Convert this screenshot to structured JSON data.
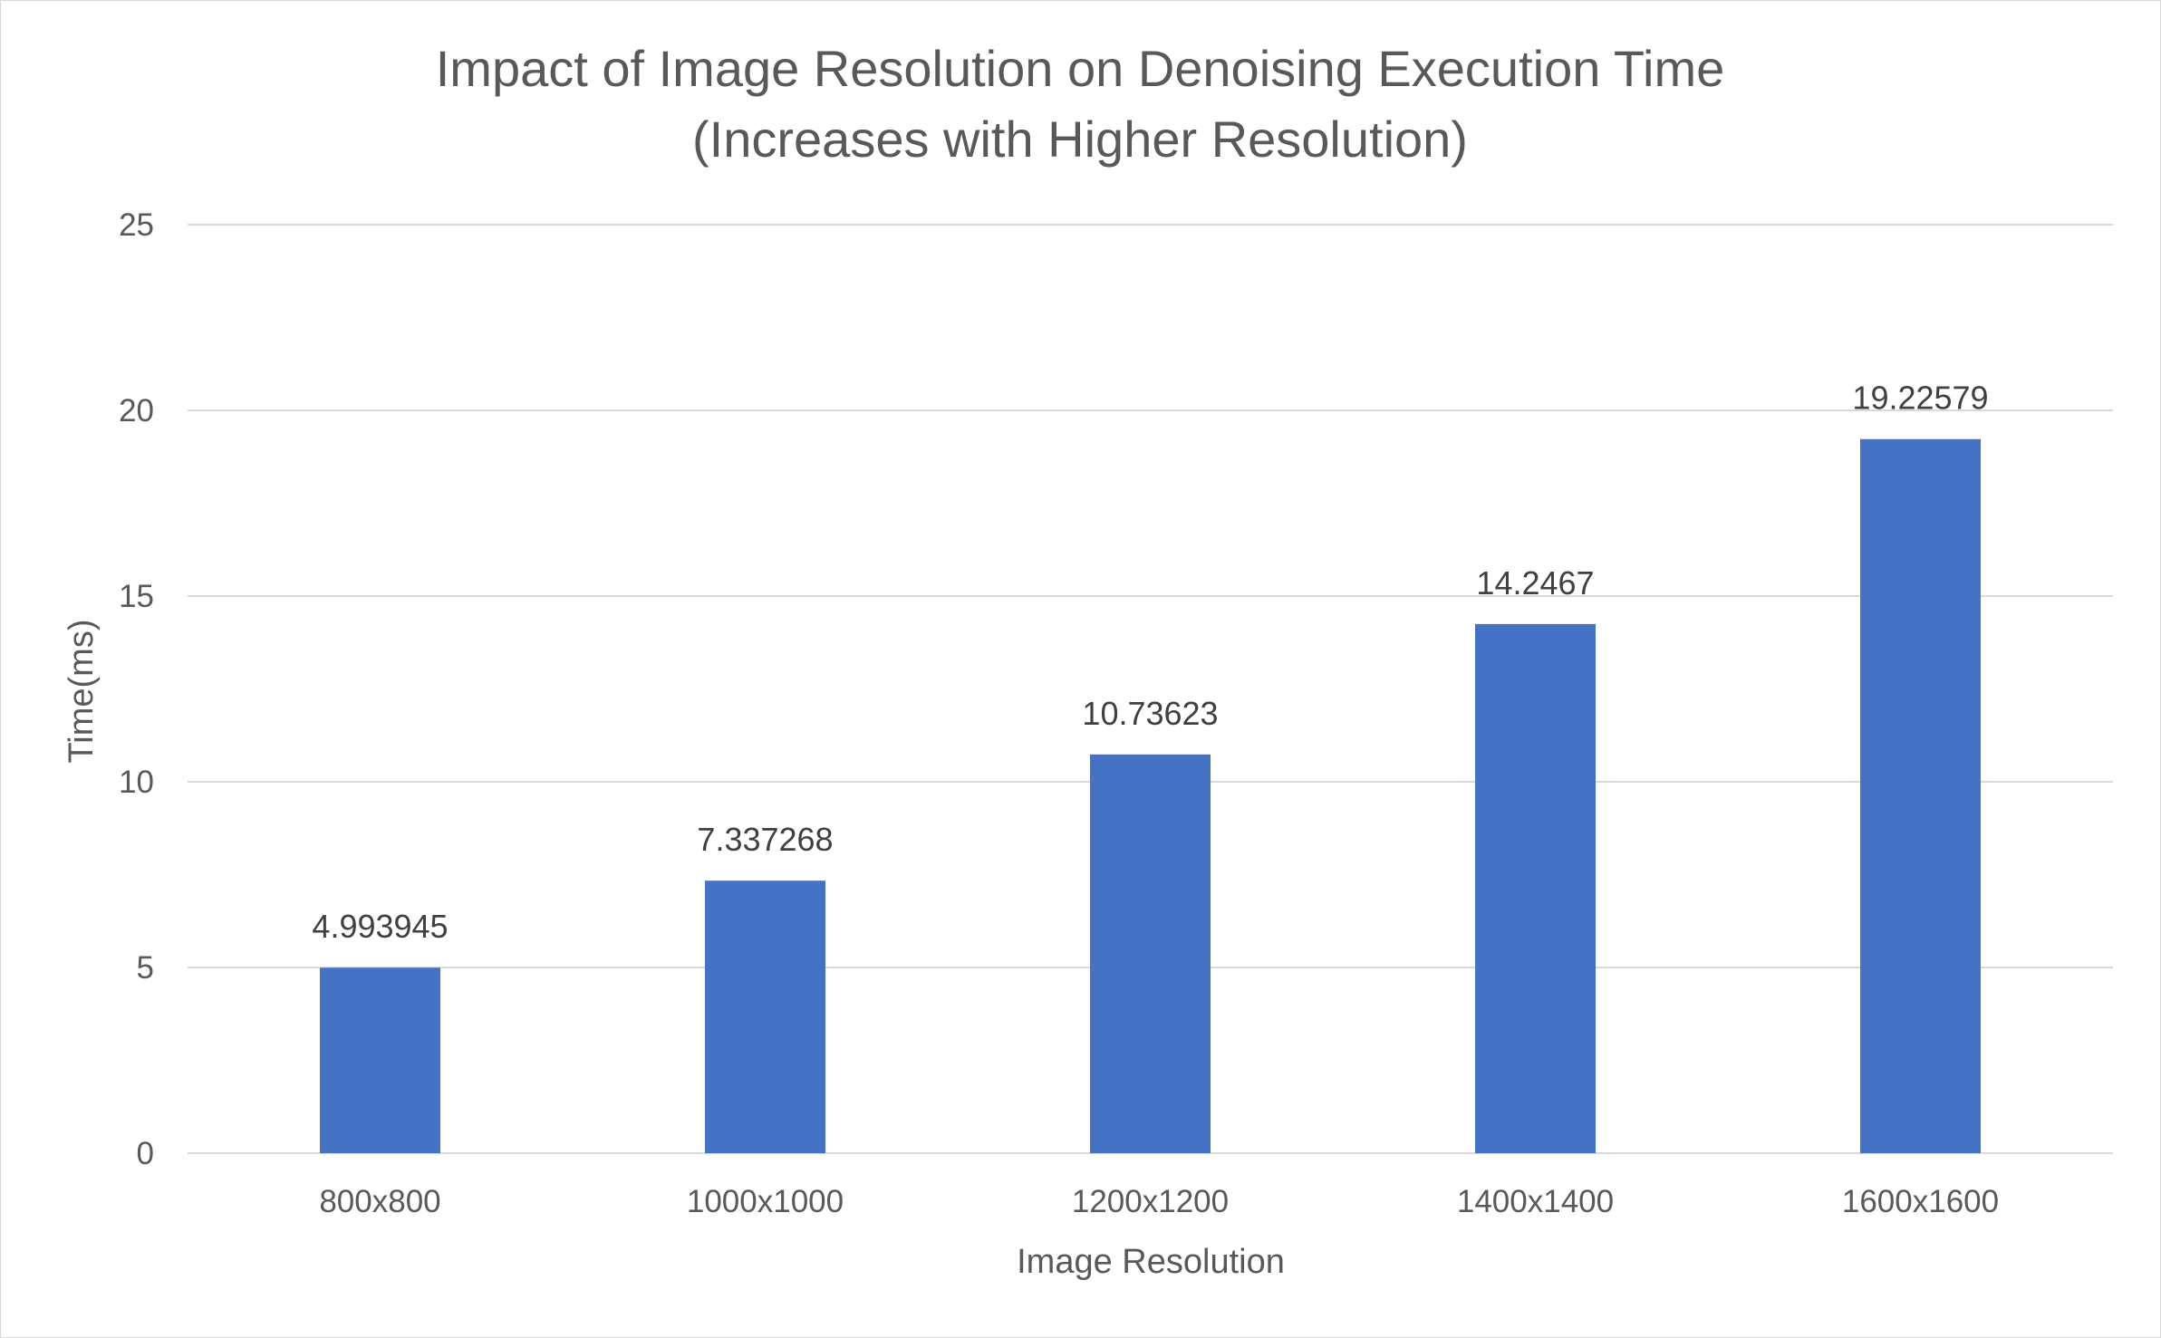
{
  "chart_data": {
    "type": "bar",
    "title": "Impact of Image Resolution on Denoising Execution Time",
    "subtitle": "(Increases with Higher Resolution)",
    "xlabel": "Image Resolution",
    "ylabel": "Time(ms)",
    "categories": [
      "800x800",
      "1000x1000",
      "1200x1200",
      "1400x1400",
      "1600x1600"
    ],
    "values": [
      4.993945,
      7.337268,
      10.73623,
      14.2467,
      19.22579
    ],
    "data_labels": [
      "4.993945",
      "7.337268",
      "10.73623",
      "14.2467",
      "19.22579"
    ],
    "ylim": [
      0,
      25
    ],
    "yticks": [
      0,
      5,
      10,
      15,
      20,
      25
    ],
    "grid": true,
    "legend": "none",
    "colors": {
      "bar": "#4472C4",
      "grid": "#d9d9d9",
      "text": "#595959",
      "data_label": "#404040"
    }
  }
}
